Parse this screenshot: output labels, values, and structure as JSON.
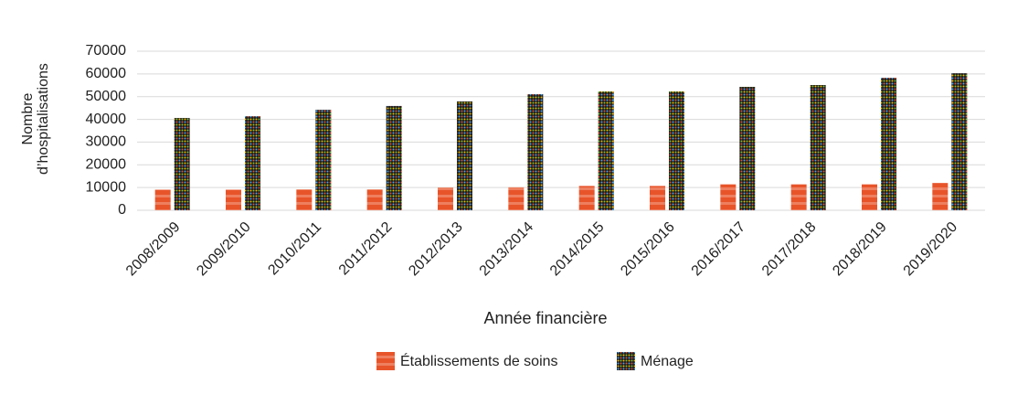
{
  "chart_data": {
    "type": "bar",
    "x_label": "Année financière",
    "y_label": "Nombre d’hospitalisations",
    "categories": [
      "2008/2009",
      "2009/2010",
      "2010/2011",
      "2011/2012",
      "2012/2013",
      "2013/2014",
      "2014/2015",
      "2015/2016",
      "2016/2017",
      "2017/2018",
      "2018/2019",
      "2019/2020"
    ],
    "series": [
      {
        "name": "Établissements de soins",
        "color": "#e8542a",
        "values": [
          9100,
          9100,
          9200,
          9200,
          10000,
          10100,
          10700,
          10700,
          11400,
          11400,
          11400,
          12000
        ]
      },
      {
        "name": "Ménage",
        "color": "#1a1a1a",
        "values": [
          40600,
          41400,
          44200,
          45900,
          47900,
          51100,
          52300,
          52300,
          54300,
          55100,
          58300,
          60300
        ]
      }
    ],
    "ylim": [
      0,
      70000
    ],
    "yticks": [
      0,
      10000,
      20000,
      30000,
      40000,
      50000,
      60000,
      70000
    ],
    "grid": true,
    "legend": "bottom"
  }
}
